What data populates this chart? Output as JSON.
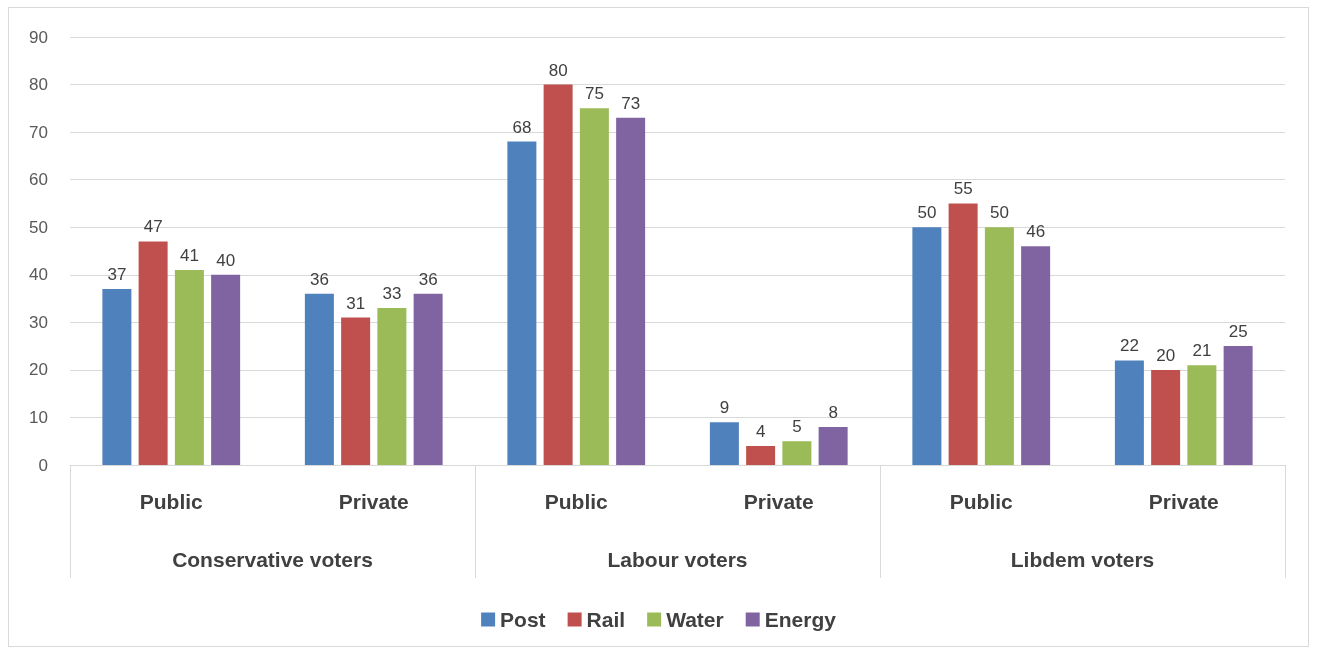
{
  "chart_data": {
    "type": "bar",
    "categories": [
      "Public",
      "Private",
      "Public",
      "Private",
      "Public",
      "Private"
    ],
    "series": [
      {
        "name": "Post",
        "color": "#4f81bd",
        "values": [
          37,
          36,
          68,
          9,
          50,
          22
        ]
      },
      {
        "name": "Rail",
        "color": "#c0504d",
        "values": [
          47,
          31,
          80,
          4,
          55,
          20
        ]
      },
      {
        "name": "Water",
        "color": "#9bbb59",
        "values": [
          41,
          33,
          75,
          5,
          50,
          21
        ]
      },
      {
        "name": "Energy",
        "color": "#8064a2",
        "values": [
          40,
          36,
          73,
          8,
          46,
          25
        ]
      }
    ],
    "annotations": [
      "Conservative voters",
      "Labour voters",
      "Libdem voters"
    ],
    "ylim": [
      0,
      90
    ],
    "yticks": [
      0,
      10,
      20,
      30,
      40,
      50,
      60,
      70,
      80,
      90
    ],
    "grid": "y",
    "legend": "bottom",
    "data_labels": true
  }
}
